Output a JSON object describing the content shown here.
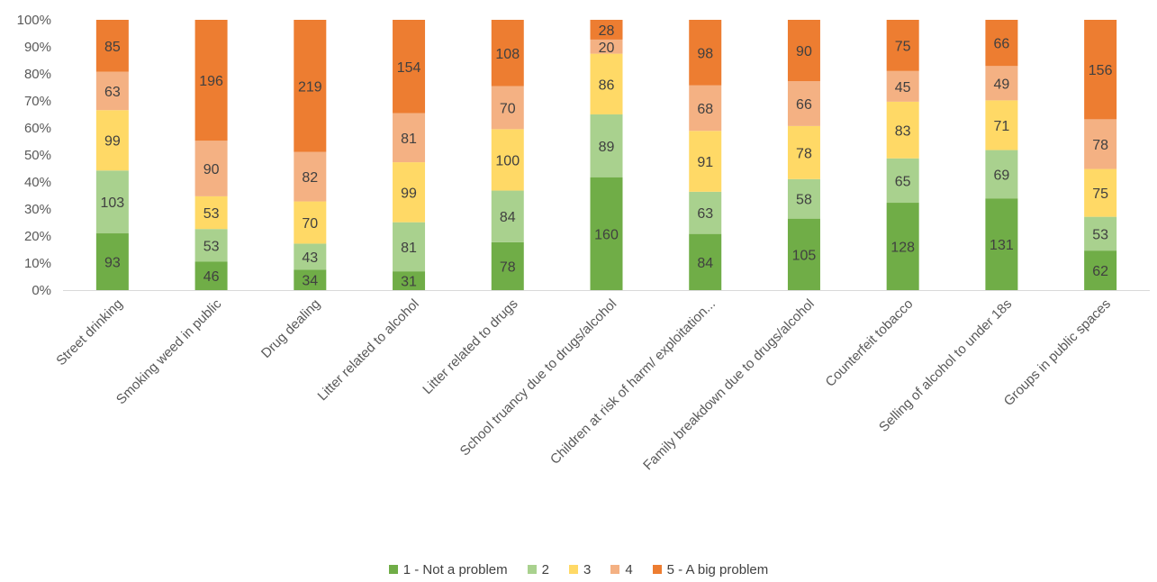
{
  "chart_data": {
    "type": "bar",
    "stacked": "percent",
    "categories": [
      "Street drinking",
      "Smoking weed in public",
      "Drug dealing",
      "Litter related to alcohol",
      "Litter related to drugs",
      "School truancy due to drugs/alcohol",
      "Children at risk of harm/ exploitation...",
      "Family breakdown due to drugs/alcohol",
      "Counterfeit tobacco",
      "Selling of alcohol to under 18s",
      "Groups in public spaces"
    ],
    "series": [
      {
        "name": "1 - Not a problem",
        "color": "#70AD47",
        "values": [
          93,
          46,
          34,
          31,
          78,
          160,
          84,
          105,
          128,
          131,
          62
        ]
      },
      {
        "name": "2",
        "color": "#A9D18E",
        "values": [
          103,
          53,
          43,
          81,
          84,
          89,
          63,
          58,
          65,
          69,
          53
        ]
      },
      {
        "name": "3",
        "color": "#FFD966",
        "values": [
          99,
          53,
          70,
          99,
          100,
          86,
          91,
          78,
          83,
          71,
          75
        ]
      },
      {
        "name": "4",
        "color": "#F4B183",
        "values": [
          63,
          90,
          82,
          81,
          70,
          20,
          68,
          66,
          45,
          49,
          78
        ]
      },
      {
        "name": "5 - A big problem",
        "color": "#ED7D31",
        "values": [
          85,
          196,
          219,
          154,
          108,
          28,
          98,
          90,
          75,
          66,
          156
        ]
      }
    ],
    "y_ticks": [
      "0%",
      "10%",
      "20%",
      "30%",
      "40%",
      "50%",
      "60%",
      "70%",
      "80%",
      "90%",
      "100%"
    ],
    "ylim": [
      0,
      100
    ],
    "grid": false,
    "legend": "bottom"
  }
}
